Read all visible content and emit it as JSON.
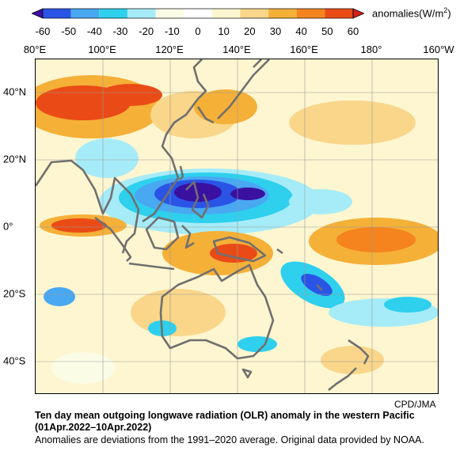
{
  "colorbar": {
    "ticks": [
      "-60",
      "-50",
      "-40",
      "-30",
      "-20",
      "-10",
      "0",
      "10",
      "20",
      "30",
      "40",
      "50",
      "60"
    ],
    "units_prefix": "anomalies(W/m",
    "units_sup": "2",
    "units_suffix": ")",
    "colors": [
      "#3a10a0",
      "#2a54e6",
      "#49a8f2",
      "#2ed0ee",
      "#a6ecf8",
      "#fbfce6",
      "#ffffff",
      "#fef6d0",
      "#f9d68a",
      "#f5b038",
      "#f5841e",
      "#ea4b16",
      "#d4201c"
    ]
  },
  "axes": {
    "lon_labels": [
      "80°E",
      "100°E",
      "120°E",
      "140°E",
      "160°E",
      "180°",
      "160°W"
    ],
    "lat_labels": [
      "40°N",
      "20°N",
      "0°",
      "20°S",
      "40°S"
    ]
  },
  "map": {
    "extent": {
      "lon_min": 80,
      "lon_max": 200,
      "lat_min": -50,
      "lat_max": 50
    },
    "coastline_color": "#707070"
  },
  "credit": "CPD/JMA",
  "title_line1": "Ten day mean outgoing longwave radiation (OLR) anomaly in the western Pacific",
  "title_line2": "(01Apr.2022–10Apr.2022)",
  "note": "Anomalies are deviations from the 1991–2020 average. Original data provided by NOAA."
}
